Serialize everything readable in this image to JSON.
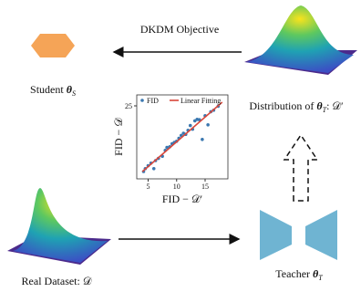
{
  "objective_label": "DKDM Objective",
  "student": {
    "text": "Student",
    "symbol": "θ",
    "sub": "S"
  },
  "distribution": {
    "text": "Distribution of",
    "symbol": "θ",
    "sub": "T",
    "suffix": ": 𝒟′"
  },
  "real_dataset": {
    "text": "Real Dataset: 𝒟"
  },
  "teacher": {
    "text": "Teacher",
    "symbol": "θ",
    "sub": "T"
  },
  "inset_chart": {
    "type": "scatter",
    "xlabel": "FID − 𝒟′",
    "ylabel": "FID − 𝒟",
    "xlim": [
      3,
      19
    ],
    "ylim": [
      5,
      28
    ],
    "xticks": [
      5,
      10,
      15
    ],
    "yticks": [
      25
    ],
    "series": [
      {
        "name": "FID",
        "color": "#3b78b0",
        "x": [
          4.2,
          4.5,
          5,
          5.5,
          6,
          6.3,
          6.8,
          7.5,
          8,
          8.3,
          8.8,
          9.2,
          9.6,
          10,
          10.4,
          10.8,
          11.2,
          11.6,
          12,
          12.4,
          12.8,
          13.2,
          13.6,
          14,
          14.5,
          15,
          15.5,
          16,
          16.5,
          17.3
        ],
        "y": [
          7.0,
          7.8,
          8.6,
          9.3,
          7.8,
          10.0,
          10.6,
          11.2,
          12.8,
          13.6,
          13.8,
          14.6,
          15.0,
          15.3,
          16.1,
          16.9,
          17.5,
          17.2,
          18.3,
          19.6,
          18.6,
          20.9,
          21.3,
          21.2,
          15.8,
          22.3,
          19.8,
          23.4,
          23.8,
          24.9
        ]
      },
      {
        "name": "Linear Fitting",
        "color": "#d9463a",
        "x": [
          4,
          18
        ],
        "y": [
          7,
          26
        ]
      }
    ]
  }
}
